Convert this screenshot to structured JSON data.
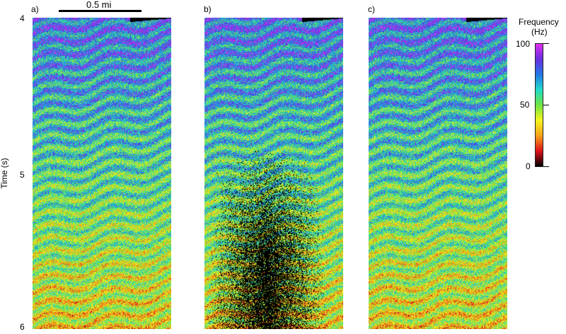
{
  "scale_bar": {
    "label": "0.5 mi"
  },
  "y_axis": {
    "label": "Time (s)",
    "ticks": [
      "4",
      "5",
      "6"
    ],
    "range": [
      4,
      6
    ]
  },
  "panels": [
    {
      "label": "a)"
    },
    {
      "label": "b)"
    },
    {
      "label": "c)"
    }
  ],
  "colorbar": {
    "title_line1": "Frequency",
    "title_line2": "(Hz)",
    "max_label": "100",
    "mid_label": "50",
    "min_label": "0",
    "range": [
      0,
      100
    ],
    "colormap": [
      "#000000",
      "#e0101a",
      "#f5a21a",
      "#f7f31c",
      "#6ee641",
      "#21d9c9",
      "#2277e4",
      "#6a2ee0",
      "#e12ff0"
    ]
  }
}
